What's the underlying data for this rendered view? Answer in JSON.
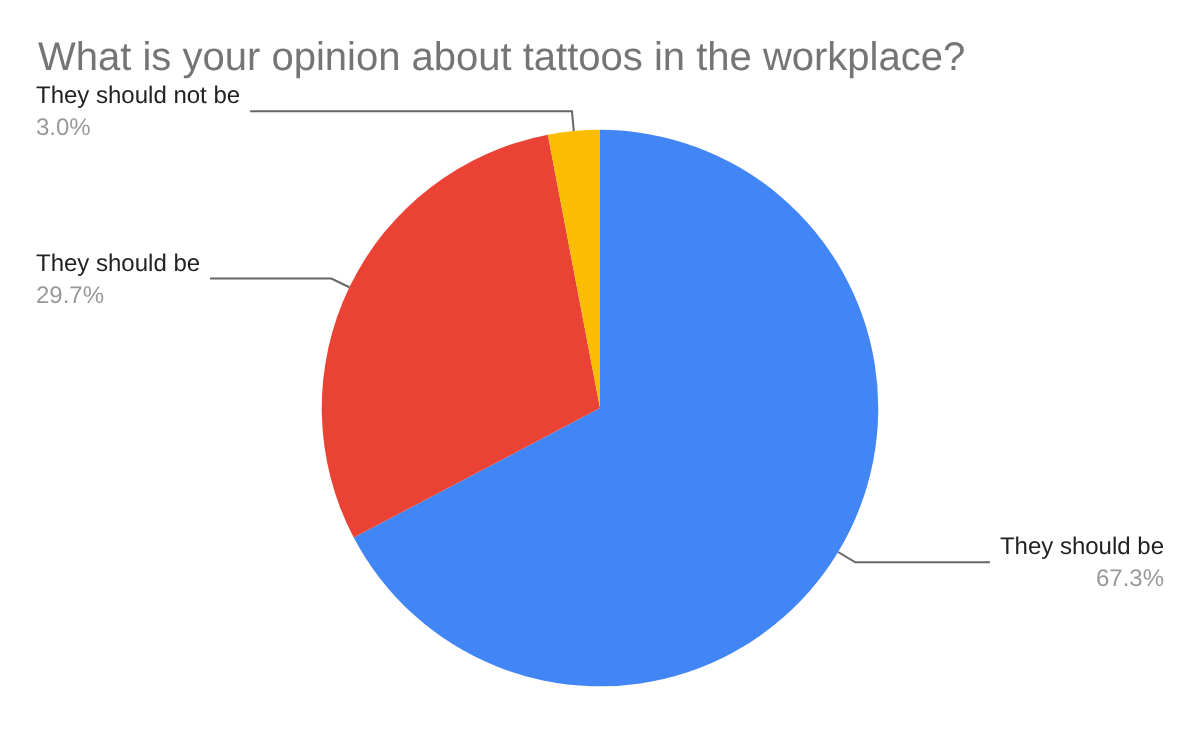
{
  "chart_data": {
    "type": "pie",
    "title": "What is your opinion about tattoos in the workplace?",
    "categories": [
      "They should be",
      "They should be",
      "They should not be"
    ],
    "values": [
      67.3,
      29.7,
      3.0
    ],
    "colors": [
      "#4285f4",
      "#ea4335",
      "#fbbc04"
    ],
    "value_labels": [
      "67.3%",
      "29.7%",
      "3.0%"
    ],
    "legend": false
  }
}
